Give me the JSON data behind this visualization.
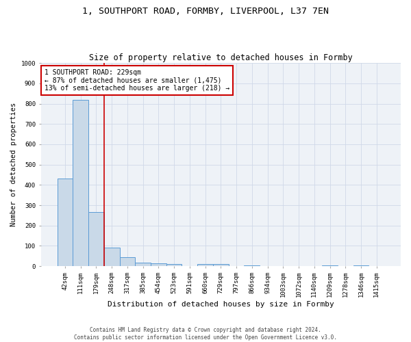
{
  "title1": "1, SOUTHPORT ROAD, FORMBY, LIVERPOOL, L37 7EN",
  "title2": "Size of property relative to detached houses in Formby",
  "xlabel": "Distribution of detached houses by size in Formby",
  "ylabel": "Number of detached properties",
  "footer1": "Contains HM Land Registry data © Crown copyright and database right 2024.",
  "footer2": "Contains public sector information licensed under the Open Government Licence v3.0.",
  "categories": [
    "42sqm",
    "111sqm",
    "179sqm",
    "248sqm",
    "317sqm",
    "385sqm",
    "454sqm",
    "523sqm",
    "591sqm",
    "660sqm",
    "729sqm",
    "797sqm",
    "866sqm",
    "934sqm",
    "1003sqm",
    "1072sqm",
    "1140sqm",
    "1209sqm",
    "1278sqm",
    "1346sqm",
    "1415sqm"
  ],
  "values": [
    430,
    820,
    265,
    90,
    43,
    18,
    15,
    10,
    0,
    10,
    10,
    0,
    5,
    0,
    0,
    0,
    0,
    5,
    0,
    5,
    0
  ],
  "bar_color": "#c9d9e8",
  "bar_edge_color": "#5b9bd5",
  "grid_color": "#d0d8e8",
  "annotation_line1": "1 SOUTHPORT ROAD: 229sqm",
  "annotation_line2": "← 87% of detached houses are smaller (1,475)",
  "annotation_line3": "13% of semi-detached houses are larger (218) →",
  "vline_x": 2.5,
  "vline_color": "#cc0000",
  "annotation_box_color": "#cc0000",
  "ylim": [
    0,
    1000
  ],
  "yticks": [
    0,
    100,
    200,
    300,
    400,
    500,
    600,
    700,
    800,
    900,
    1000
  ],
  "bg_color": "#eef2f7",
  "title1_fontsize": 9.5,
  "title2_fontsize": 8.5,
  "xlabel_fontsize": 8,
  "ylabel_fontsize": 7.5,
  "tick_fontsize": 6.5,
  "annotation_fontsize": 7,
  "footer_fontsize": 5.5
}
